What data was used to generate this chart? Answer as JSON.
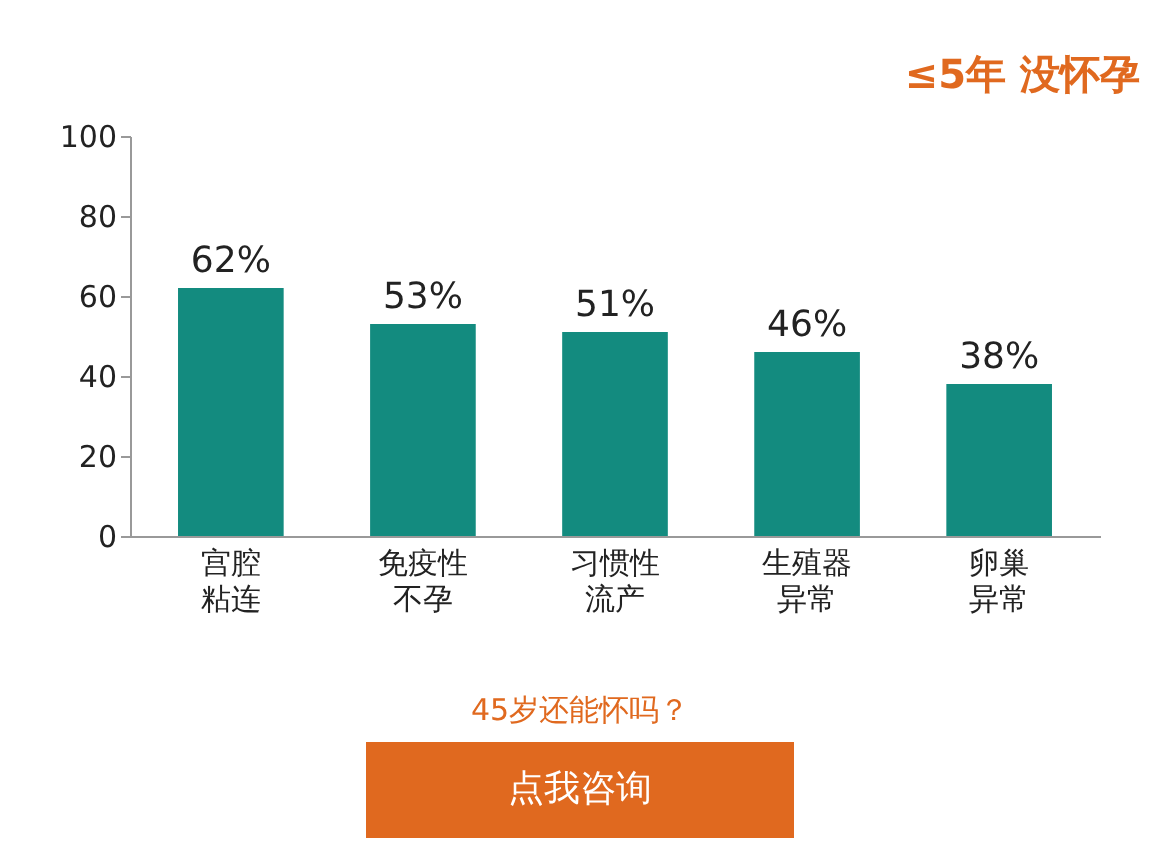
{
  "chart_data": {
    "type": "bar",
    "title": "≤5年 没怀孕",
    "categories": [
      "宫腔粘连",
      "免疫性不孕",
      "习惯性流产",
      "生殖器异常",
      "卵巢异常"
    ],
    "values": [
      62,
      53,
      51,
      46,
      38
    ],
    "value_labels": [
      "62%",
      "53%",
      "51%",
      "46%",
      "38%"
    ],
    "color": "#138b7f",
    "ylim": [
      0,
      100
    ],
    "yticks": [
      0,
      20,
      40,
      60,
      80,
      100
    ],
    "grid": false,
    "annotations": [
      "45岁还能怀吗？",
      "点我咨询"
    ]
  }
}
